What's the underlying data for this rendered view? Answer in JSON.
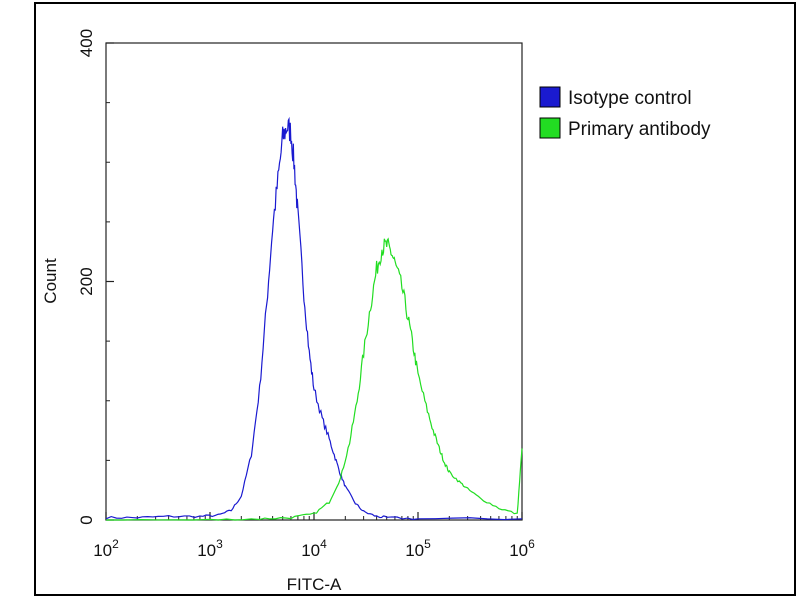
{
  "chart_data": {
    "type": "line",
    "xlabel": "FITC-A",
    "ylabel": "Count",
    "x_scale": "log",
    "xlim": [
      100,
      1000000
    ],
    "ylim": [
      0,
      400
    ],
    "x_ticks": [
      {
        "value": 100,
        "base": "10",
        "exp": "2"
      },
      {
        "value": 1000,
        "base": "10",
        "exp": "3"
      },
      {
        "value": 10000,
        "base": "10",
        "exp": "4"
      },
      {
        "value": 100000,
        "base": "10",
        "exp": "5"
      },
      {
        "value": 1000000,
        "base": "10",
        "exp": "6"
      }
    ],
    "y_ticks": [
      {
        "value": 0,
        "label": "0"
      },
      {
        "value": 200,
        "label": "200"
      },
      {
        "value": 400,
        "label": "400"
      }
    ],
    "grid": false,
    "legend_position": "top-right",
    "series": [
      {
        "name": "Isotype control",
        "color": "#1a1ad0",
        "x": [
          100,
          200,
          400,
          800,
          1200,
          1600,
          2000,
          2500,
          3000,
          3500,
          4000,
          4500,
          5000,
          5500,
          6000,
          6500,
          7000,
          8000,
          9000,
          10000,
          12000,
          14000,
          16000,
          18000,
          20000,
          25000,
          30000,
          40000,
          50000,
          100000,
          1000000
        ],
        "y": [
          2,
          2,
          3,
          3,
          4,
          8,
          20,
          55,
          110,
          180,
          245,
          285,
          320,
          330,
          325,
          295,
          255,
          190,
          140,
          110,
          85,
          68,
          52,
          38,
          28,
          14,
          7,
          3,
          2,
          1,
          1
        ]
      },
      {
        "name": "Primary antibody",
        "color": "#22dd22",
        "x": [
          100,
          1000,
          3000,
          6000,
          10000,
          14000,
          18000,
          22000,
          26000,
          30000,
          35000,
          40000,
          45000,
          50000,
          55000,
          60000,
          70000,
          80000,
          90000,
          100000,
          120000,
          140000,
          160000,
          180000,
          200000,
          250000,
          300000,
          400000,
          600000,
          900000,
          1000000
        ],
        "y": [
          0,
          0,
          1,
          2,
          5,
          15,
          35,
          65,
          100,
          140,
          180,
          210,
          228,
          230,
          225,
          215,
          195,
          170,
          145,
          122,
          95,
          75,
          60,
          48,
          40,
          32,
          26,
          18,
          10,
          5,
          60
        ]
      }
    ]
  }
}
